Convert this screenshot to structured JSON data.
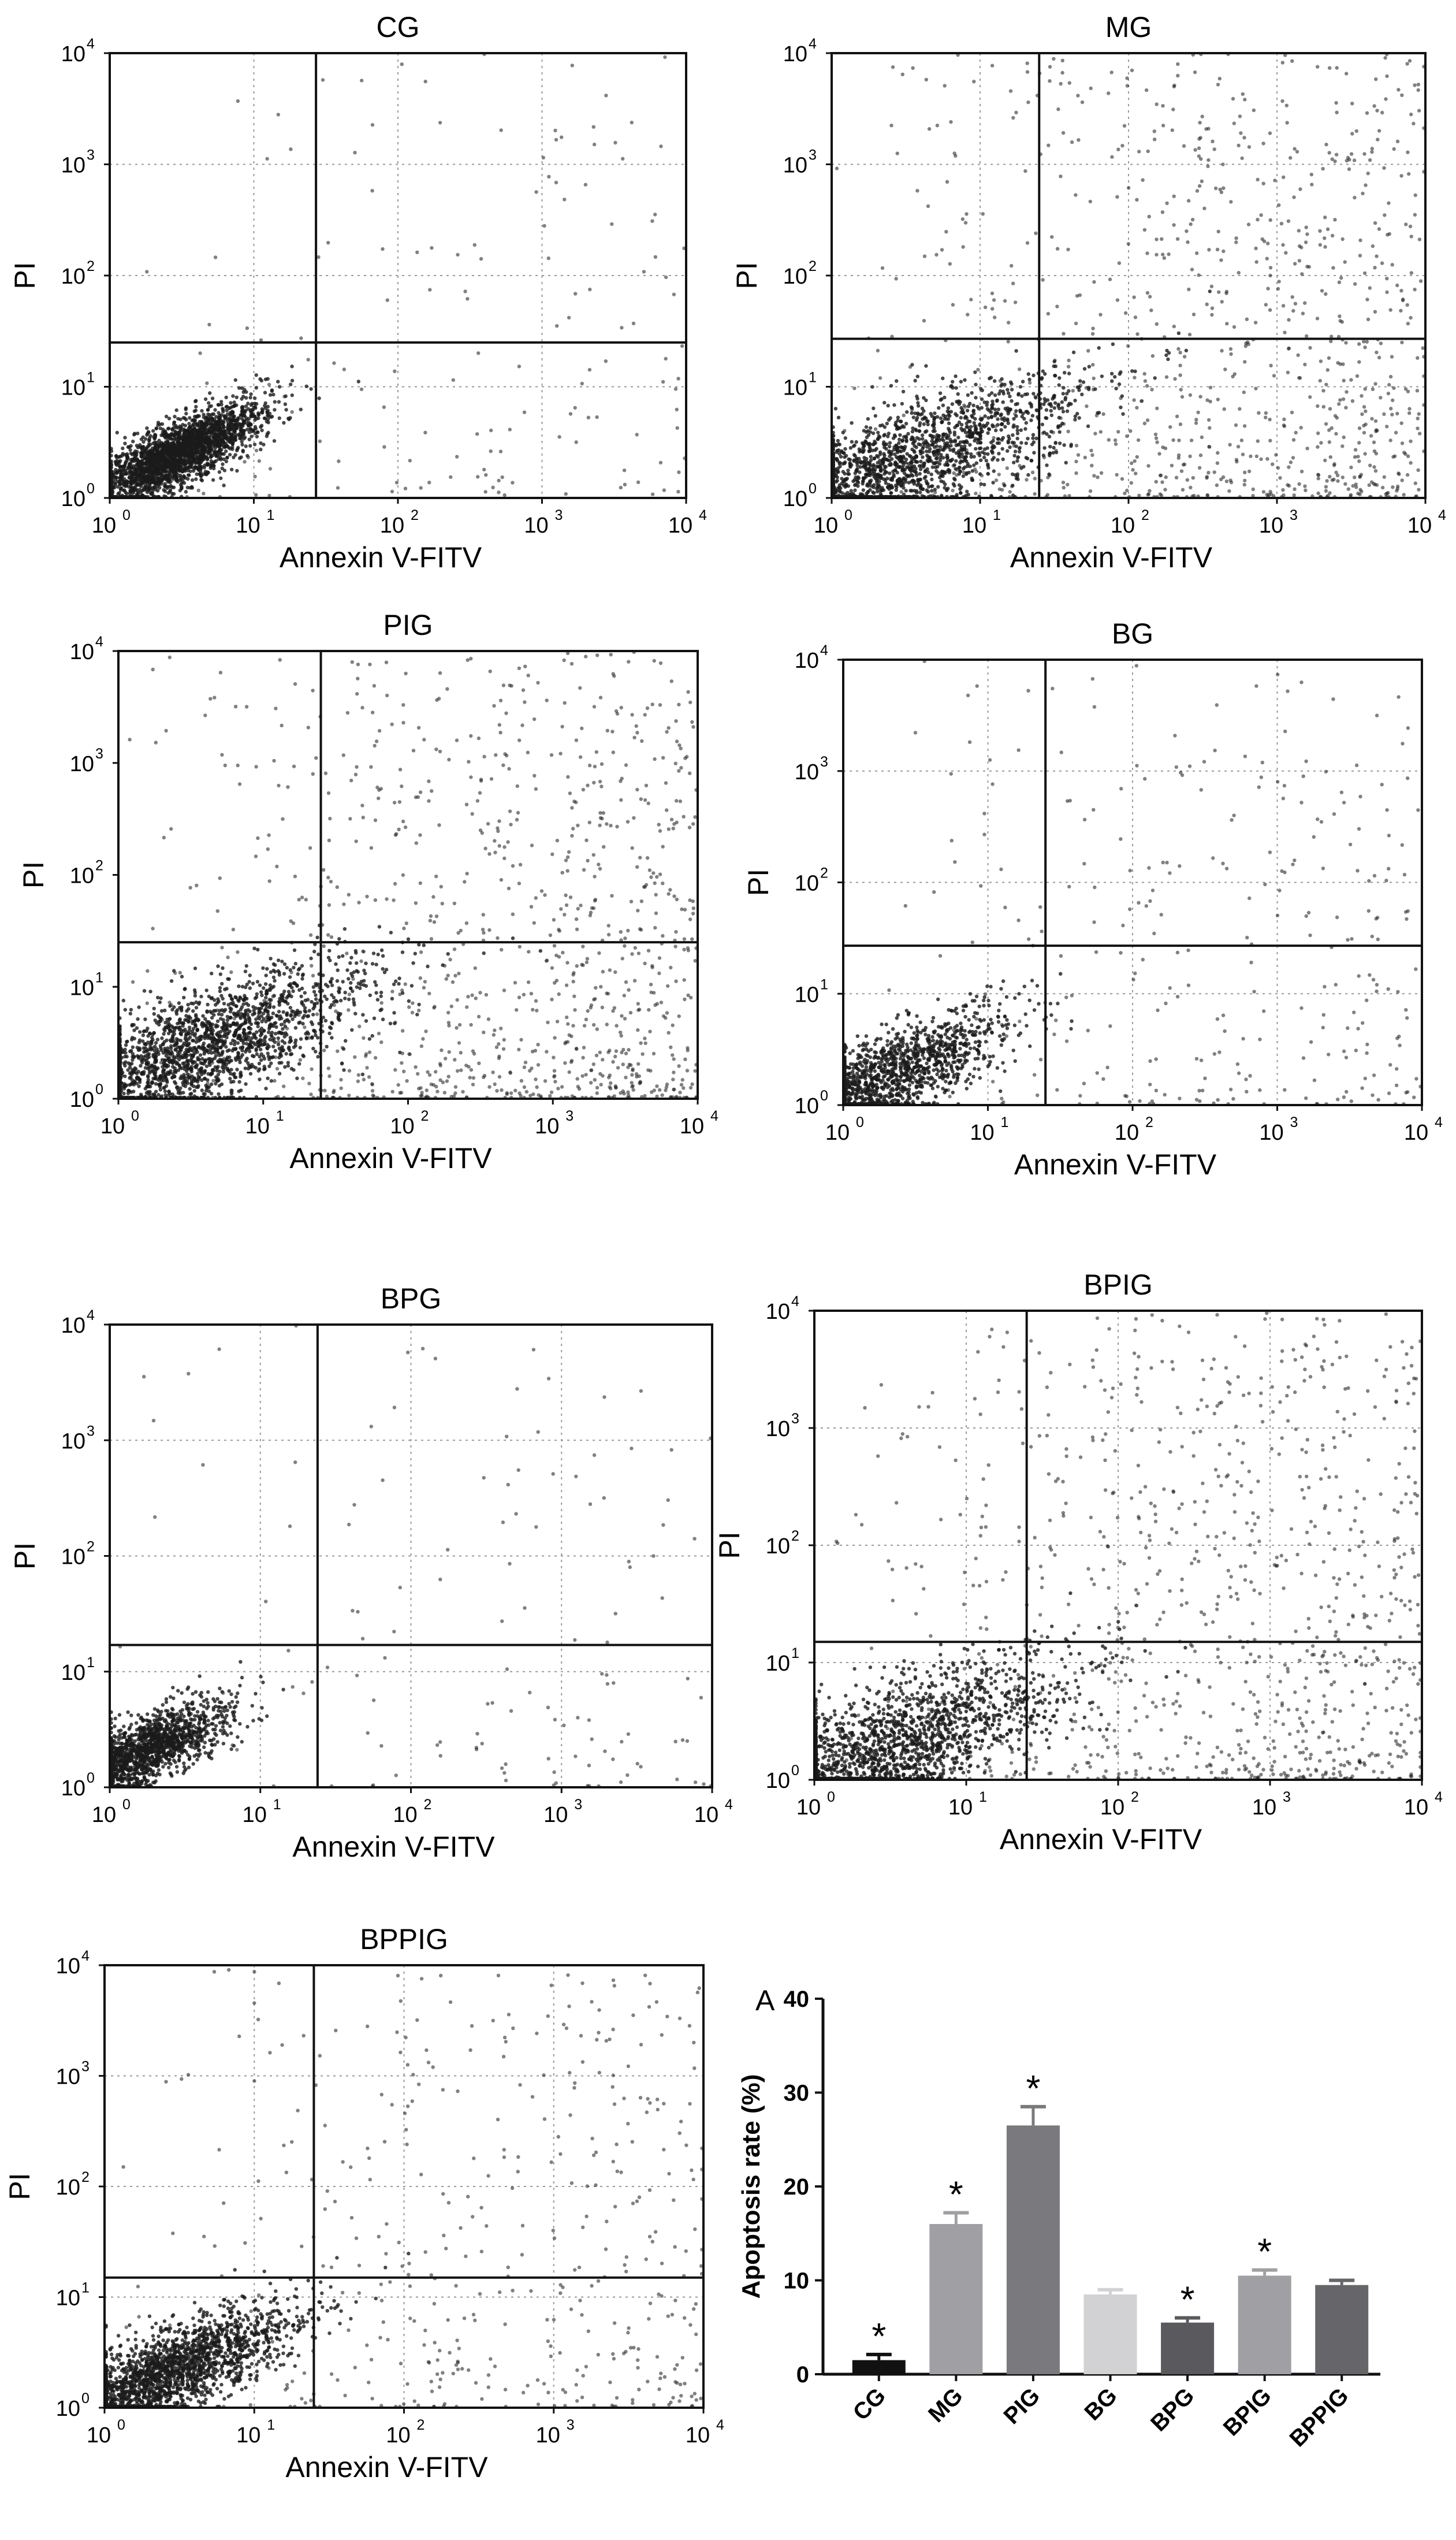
{
  "chart_data": [
    {
      "type": "scatter",
      "title": "CG",
      "xlabel": "Annexin V-FITV",
      "ylabel": "PI",
      "x_ticks": [
        "10",
        "10",
        "10",
        "10",
        "10"
      ],
      "x_tick_exp": [
        "0",
        "1",
        "2",
        "3",
        "4"
      ],
      "y_ticks": [
        "10",
        "10",
        "10",
        "10",
        "10"
      ],
      "y_tick_exp": [
        "0",
        "1",
        "2",
        "3",
        "4"
      ],
      "xlim": [
        1,
        10000
      ],
      "ylim": [
        1,
        10000
      ],
      "scale": "log",
      "grid": true,
      "gate": {
        "x": 27,
        "y": 25
      },
      "density": {
        "core_x": 3,
        "core_y": 2.5,
        "spread": "tight",
        "n": 2600
      }
    },
    {
      "type": "scatter",
      "title": "MG",
      "xlabel": "Annexin V-FITV",
      "ylabel": "PI",
      "x_ticks": [
        "10",
        "10",
        "10",
        "10",
        "10"
      ],
      "x_tick_exp": [
        "0",
        "1",
        "2",
        "3",
        "4"
      ],
      "y_ticks": [
        "10",
        "10",
        "10",
        "10",
        "10"
      ],
      "y_tick_exp": [
        "0",
        "1",
        "2",
        "3",
        "4"
      ],
      "xlim": [
        1,
        10000
      ],
      "ylim": [
        1,
        10000
      ],
      "scale": "log",
      "grid": true,
      "gate": {
        "x": 25,
        "y": 27
      },
      "density": {
        "core_x": 2.5,
        "core_y": 1.8,
        "spread": "wide",
        "n": 3000
      }
    },
    {
      "type": "scatter",
      "title": "PIG",
      "xlabel": "Annexin V-FITV",
      "ylabel": "PI",
      "x_ticks": [
        "10",
        "10",
        "10",
        "10",
        "10"
      ],
      "x_tick_exp": [
        "0",
        "1",
        "2",
        "3",
        "4"
      ],
      "y_ticks": [
        "10",
        "10",
        "10",
        "10",
        "10"
      ],
      "y_tick_exp": [
        "0",
        "1",
        "2",
        "3",
        "4"
      ],
      "xlim": [
        1,
        10000
      ],
      "ylim": [
        1,
        10000
      ],
      "scale": "log",
      "grid": false,
      "gate": {
        "x": 25,
        "y": 25
      },
      "density": {
        "core_x": 3,
        "core_y": 2.5,
        "spread": "wide",
        "n": 3200
      }
    },
    {
      "type": "scatter",
      "title": "BG",
      "xlabel": "Annexin V-FITV",
      "ylabel": "PI",
      "x_ticks": [
        "10",
        "10",
        "10",
        "10",
        "10"
      ],
      "x_tick_exp": [
        "0",
        "1",
        "2",
        "3",
        "4"
      ],
      "y_ticks": [
        "10",
        "10",
        "10",
        "10",
        "10"
      ],
      "y_tick_exp": [
        "0",
        "1",
        "2",
        "3",
        "4"
      ],
      "xlim": [
        1,
        10000
      ],
      "ylim": [
        1,
        10000
      ],
      "scale": "log",
      "grid": true,
      "gate": {
        "x": 25,
        "y": 27
      },
      "density": {
        "core_x": 2,
        "core_y": 1.8,
        "spread": "medium",
        "n": 1800
      }
    },
    {
      "type": "scatter",
      "title": "BPG",
      "xlabel": "Annexin V-FITV",
      "ylabel": "PI",
      "x_ticks": [
        "10",
        "10",
        "10",
        "10",
        "10"
      ],
      "x_tick_exp": [
        "0",
        "1",
        "2",
        "3",
        "4"
      ],
      "y_ticks": [
        "10",
        "10",
        "10",
        "10",
        "10"
      ],
      "y_tick_exp": [
        "0",
        "1",
        "2",
        "3",
        "4"
      ],
      "xlim": [
        1,
        10000
      ],
      "ylim": [
        1,
        10000
      ],
      "scale": "log",
      "grid": true,
      "gate": {
        "x": 24,
        "y": 17
      },
      "density": {
        "core_x": 1.6,
        "core_y": 2,
        "spread": "tight",
        "n": 1800
      }
    },
    {
      "type": "scatter",
      "title": "BPIG",
      "xlabel": "Annexin V-FITV",
      "ylabel": "PI",
      "x_ticks": [
        "10",
        "10",
        "10",
        "10",
        "10"
      ],
      "x_tick_exp": [
        "0",
        "1",
        "2",
        "3",
        "4"
      ],
      "y_ticks": [
        "10",
        "10",
        "10",
        "10",
        "10"
      ],
      "y_tick_exp": [
        "0",
        "1",
        "2",
        "3",
        "4"
      ],
      "xlim": [
        1,
        10000
      ],
      "ylim": [
        1,
        10000
      ],
      "scale": "log",
      "grid": true,
      "gate": {
        "x": 25,
        "y": 15
      },
      "density": {
        "core_x": 2.5,
        "core_y": 1.7,
        "spread": "wide",
        "n": 3000
      }
    },
    {
      "type": "scatter",
      "title": "BPPIG",
      "xlabel": "Annexin V-FITV",
      "ylabel": "PI",
      "x_ticks": [
        "10",
        "10",
        "10",
        "10",
        "10"
      ],
      "x_tick_exp": [
        "0",
        "1",
        "2",
        "3",
        "4"
      ],
      "y_ticks": [
        "10",
        "10",
        "10",
        "10",
        "10"
      ],
      "y_tick_exp": [
        "0",
        "1",
        "2",
        "3",
        "4"
      ],
      "xlim": [
        1,
        10000
      ],
      "ylim": [
        1,
        10000
      ],
      "scale": "log",
      "grid": true,
      "gate": {
        "x": 25,
        "y": 15
      },
      "density": {
        "core_x": 2.5,
        "core_y": 2,
        "spread": "medium",
        "n": 2600
      }
    },
    {
      "type": "bar",
      "panel_label": "A",
      "title": "",
      "xlabel": "",
      "ylabel": "Apoptosis rate (%)",
      "categories": [
        "CG",
        "MG",
        "PIG",
        "BG",
        "BPG",
        "BPIG",
        "BPPIG"
      ],
      "values": [
        1.5,
        16.0,
        26.5,
        8.5,
        5.5,
        10.5,
        9.5
      ],
      "errors": [
        0.6,
        1.2,
        2.0,
        0.5,
        0.5,
        0.6,
        0.5
      ],
      "significant": [
        true,
        true,
        true,
        false,
        true,
        true,
        false
      ],
      "marker": "*",
      "colors": [
        "#111111",
        "#a0a0a4",
        "#7a7a7e",
        "#d2d2d4",
        "#5a5a5e",
        "#a0a0a4",
        "#66666a"
      ],
      "ylim": [
        0,
        40
      ],
      "y_ticks": [
        "0",
        "10",
        "20",
        "30",
        "40"
      ],
      "grid": false
    }
  ]
}
